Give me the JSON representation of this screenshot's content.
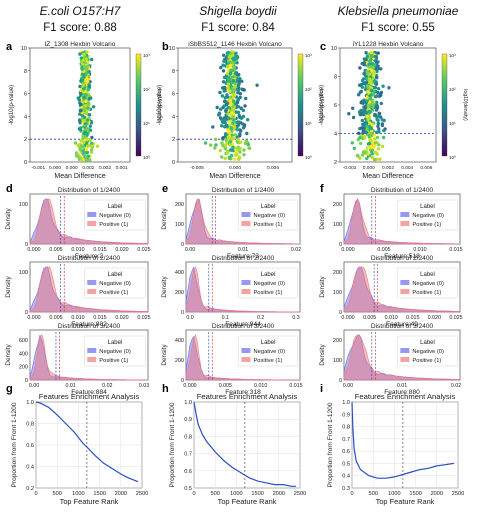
{
  "columns": [
    {
      "organism": "E.coli O157:H7",
      "f1": "F1 score: 0.88"
    },
    {
      "organism": "Shigella boydii",
      "f1": "F1 score: 0.84"
    },
    {
      "organism": "Klebsiella pneumoniae",
      "f1": "F1 score: 0.55"
    }
  ],
  "panel_letters": [
    "a",
    "b",
    "c",
    "d",
    "e",
    "f",
    "g",
    "h",
    "i"
  ],
  "colors": {
    "negative": "#6b6bf0",
    "positive": "#f07a7a",
    "line": "#2a4ec9",
    "threshold": "#2233bb",
    "colormap": [
      "#440154",
      "#3b528b",
      "#21908d",
      "#5dc963",
      "#fde725"
    ]
  },
  "chart_data": [
    {
      "type": "scatter",
      "panel": "a",
      "subtype": "hexbin-volcano",
      "title": "IZ_1308 Hexbin Volcano",
      "xlabel": "Mean Difference",
      "ylabel": "-log10(p-value)",
      "xlim": [
        -0.001,
        0.001
      ],
      "xticks": [
        "-0.001",
        "0.000",
        "0.000",
        "0.002",
        "0.002",
        "0.001"
      ],
      "yticks": [
        0,
        2,
        4,
        6,
        8,
        10
      ],
      "ylim": [
        0,
        10
      ],
      "threshold_y": 2,
      "colorbar_label": "log10(density)",
      "colorbar_ticks": [
        "10³",
        "10²",
        "10¹",
        "10⁰"
      ]
    },
    {
      "type": "scatter",
      "panel": "b",
      "subtype": "hexbin-volcano",
      "title": "iSbBS512_1146 Hexbin Volcano",
      "xlabel": "Mean Difference",
      "ylabel": "-log10(p-value)",
      "xlim": [
        -0.005,
        0.005
      ],
      "xticks": [
        "-0.005",
        "0.000",
        "0.005"
      ],
      "yticks": [
        0,
        2,
        4,
        6,
        8,
        10
      ],
      "ylim": [
        0,
        10
      ],
      "threshold_y": 2,
      "colorbar_label": "log10(density)",
      "colorbar_ticks": [
        "10³",
        "10²",
        "10¹",
        "10⁰"
      ]
    },
    {
      "type": "scatter",
      "panel": "c",
      "subtype": "hexbin-volcano",
      "title": "iYL1228 Hexbin Volcano",
      "xlabel": "Mean Difference",
      "ylabel": "-log10(p-value)",
      "xlim": [
        -0.002,
        0.006
      ],
      "xticks": [
        "-0.002",
        "0.000",
        "0.002",
        "0.004",
        "0.006"
      ],
      "yticks": [
        2,
        4,
        6,
        8,
        10
      ],
      "ylim": [
        2,
        10
      ],
      "threshold_y": 4,
      "colorbar_label": "log10(density)",
      "colorbar_ticks": [
        "10³",
        "10²",
        "10¹",
        "10⁰"
      ]
    },
    {
      "type": "area",
      "panel": "d1",
      "title": "Distribution of 1/2400",
      "xlabel": "Feature:2",
      "ylabel": "Density",
      "xticks": [
        "0.000",
        "0.005",
        "0.010",
        "0.015",
        "0.020",
        "0.025"
      ],
      "yticks": [
        "0",
        "100"
      ],
      "legend_title": "Label",
      "legend": [
        "Negative (0)",
        "Positive (1)"
      ],
      "peak": 0.12,
      "width": 0.07,
      "xmax": 0.03,
      "tail": 0.55,
      "mean_neg": 0.005,
      "mean_pos": 0.0055
    },
    {
      "type": "area",
      "panel": "d2",
      "title": "Distribution of 2/2400",
      "xlabel": "Feature:802",
      "ylabel": "Density",
      "xticks": [
        "0.000",
        "0.005",
        "0.010",
        "0.015",
        "0.020",
        "0.025"
      ],
      "yticks": [
        "0",
        "100"
      ],
      "legend_title": "Label",
      "legend": [
        "Negative (0)",
        "Positive (1)"
      ],
      "peak": 0.12,
      "width": 0.07,
      "xmax": 0.03,
      "tail": 0.55,
      "mean_neg": 0.005,
      "mean_pos": 0.0055
    },
    {
      "type": "area",
      "panel": "d3",
      "title": "Distribution of 3/2400",
      "xlabel": "Feature:884",
      "ylabel": "Density",
      "xticks": [
        "0.00",
        "0.01",
        "0.02",
        "0.03"
      ],
      "yticks": [
        "0",
        "200",
        "400",
        "600"
      ],
      "legend_title": "Label",
      "legend": [
        "Negative (0)",
        "Positive (1)"
      ],
      "peak": 0.08,
      "width": 0.05,
      "xmax": 0.035,
      "tail": 0.25,
      "mean_neg": 0.006,
      "mean_pos": 0.0065
    },
    {
      "type": "area",
      "panel": "e1",
      "title": "Distribution of 1/2400",
      "xlabel": "Feature:73",
      "ylabel": "Density",
      "xticks": [
        "0.00",
        "0.01",
        "0.02"
      ],
      "yticks": [
        "0",
        "100",
        "200"
      ],
      "legend_title": "Label",
      "legend": [
        "Negative (0)",
        "Positive (1)"
      ],
      "peak": 0.09,
      "width": 0.06,
      "xmax": 0.025,
      "tail": 0.3,
      "mean_neg": 0.004,
      "mean_pos": 0.005
    },
    {
      "type": "area",
      "panel": "e2",
      "title": "Distribution of 2/2400",
      "xlabel": "Feature:944",
      "ylabel": "Density",
      "xticks": [
        "0.0",
        "0.1",
        "0.2",
        "0.3"
      ],
      "yticks": [
        "0",
        "200",
        "400"
      ],
      "legend_title": "Label",
      "legend": [
        "Negative (0)",
        "Positive (1)"
      ],
      "peak": 0.06,
      "width": 0.05,
      "xmax": 0.3,
      "tail": 0.25,
      "mean_neg": 0.04,
      "mean_pos": 0.05
    },
    {
      "type": "area",
      "panel": "e3",
      "title": "Distribution of 3/2400",
      "xlabel": "Feature:318",
      "ylabel": "Density",
      "xticks": [
        "0.000",
        "0.005",
        "0.010",
        "0.015"
      ],
      "yticks": [
        "0",
        "200",
        "400"
      ],
      "legend_title": "Label",
      "legend": [
        "Negative (0)",
        "Positive (1)"
      ],
      "peak": 0.06,
      "width": 0.05,
      "xmax": 0.02,
      "tail": 0.2,
      "mean_neg": 0.002,
      "mean_pos": 0.0025
    },
    {
      "type": "area",
      "panel": "f1",
      "title": "Distribution of 1/2400",
      "xlabel": "Feature:518",
      "ylabel": "Density",
      "xticks": [
        "0.000",
        "0.005",
        "0.010",
        "0.015"
      ],
      "yticks": [
        "0",
        "100",
        "200"
      ],
      "legend_title": "Label",
      "legend": [
        "Negative (0)",
        "Positive (1)"
      ],
      "peak": 0.1,
      "width": 0.06,
      "xmax": 0.02,
      "tail": 0.3,
      "mean_neg": 0.003,
      "mean_pos": 0.004
    },
    {
      "type": "area",
      "panel": "f2",
      "title": "Distribution of 2/2400",
      "xlabel": "Feature:49",
      "ylabel": "Density",
      "xticks": [
        "0.000",
        "0.005",
        "0.010",
        "0.015",
        "0.020",
        "0.025"
      ],
      "yticks": [
        "0",
        "100",
        "200"
      ],
      "legend_title": "Label",
      "legend": [
        "Negative (0)",
        "Positive (1)"
      ],
      "peak": 0.12,
      "width": 0.08,
      "xmax": 0.03,
      "tail": 0.5,
      "mean_neg": 0.004,
      "mean_pos": 0.005
    },
    {
      "type": "area",
      "panel": "f3",
      "title": "Distribution of 3/2400",
      "xlabel": "Feature:880",
      "ylabel": "Density",
      "xticks": [
        "0.00",
        "0.01",
        "0.02"
      ],
      "yticks": [
        "0",
        "100",
        "200"
      ],
      "legend_title": "Label",
      "legend": [
        "Negative (0)",
        "Positive (1)"
      ],
      "peak": 0.1,
      "width": 0.08,
      "xmax": 0.025,
      "tail": 0.5,
      "mean_neg": 0.004,
      "mean_pos": 0.005
    },
    {
      "type": "line",
      "panel": "g",
      "title": "Features Enrichment Analysis",
      "xlabel": "Top Feature Rank",
      "ylabel": "Proportion from Front 1-1200",
      "xlim": [
        0,
        2500
      ],
      "ylim": [
        0.2,
        1.0
      ],
      "xticks": [
        0,
        500,
        1000,
        1500,
        2000,
        2500
      ],
      "yticks": [
        0.2,
        0.4,
        0.6,
        0.8,
        1.0
      ],
      "vline": 1200,
      "x": [
        0,
        100,
        200,
        300,
        500,
        700,
        900,
        1100,
        1200,
        1400,
        1600,
        1800,
        2000,
        2200,
        2400
      ],
      "y": [
        1.0,
        0.99,
        0.97,
        0.95,
        0.88,
        0.8,
        0.72,
        0.62,
        0.58,
        0.5,
        0.43,
        0.38,
        0.33,
        0.29,
        0.26
      ]
    },
    {
      "type": "line",
      "panel": "h",
      "title": "Features Enrichment Analysis",
      "xlabel": "Top Feature Rank",
      "ylabel": "Proportion from Front 1-1200",
      "xlim": [
        0,
        2500
      ],
      "ylim": [
        0.5,
        1.0
      ],
      "xticks": [
        0,
        500,
        1000,
        1500,
        2000,
        2500
      ],
      "yticks": [
        0.5,
        0.6,
        0.7,
        0.8,
        0.9,
        1.0
      ],
      "vline": 1200,
      "x": [
        0,
        50,
        100,
        200,
        300,
        500,
        700,
        900,
        1100,
        1300,
        1500,
        1700,
        1900,
        2100,
        2300,
        2400
      ],
      "y": [
        1.0,
        0.93,
        0.87,
        0.81,
        0.77,
        0.71,
        0.66,
        0.62,
        0.59,
        0.56,
        0.54,
        0.53,
        0.52,
        0.52,
        0.51,
        0.51
      ]
    },
    {
      "type": "line",
      "panel": "i",
      "title": "Features Enrichment Analysis",
      "xlabel": "Top Feature Rank",
      "ylabel": "Proportion from Front 1-1200",
      "xlim": [
        0,
        2500
      ],
      "ylim": [
        0.3,
        1.0
      ],
      "xticks": [
        0,
        500,
        1000,
        1500,
        2000,
        2500
      ],
      "yticks": [
        0.3,
        0.4,
        0.5,
        0.6,
        0.7,
        0.8,
        0.9,
        1.0
      ],
      "vline": 1200,
      "x": [
        0,
        20,
        50,
        100,
        200,
        400,
        600,
        800,
        1000,
        1200,
        1400,
        1600,
        1800,
        2000,
        2200,
        2400
      ],
      "y": [
        1.0,
        0.8,
        0.62,
        0.52,
        0.45,
        0.4,
        0.38,
        0.38,
        0.39,
        0.41,
        0.43,
        0.45,
        0.46,
        0.48,
        0.49,
        0.5
      ]
    }
  ]
}
